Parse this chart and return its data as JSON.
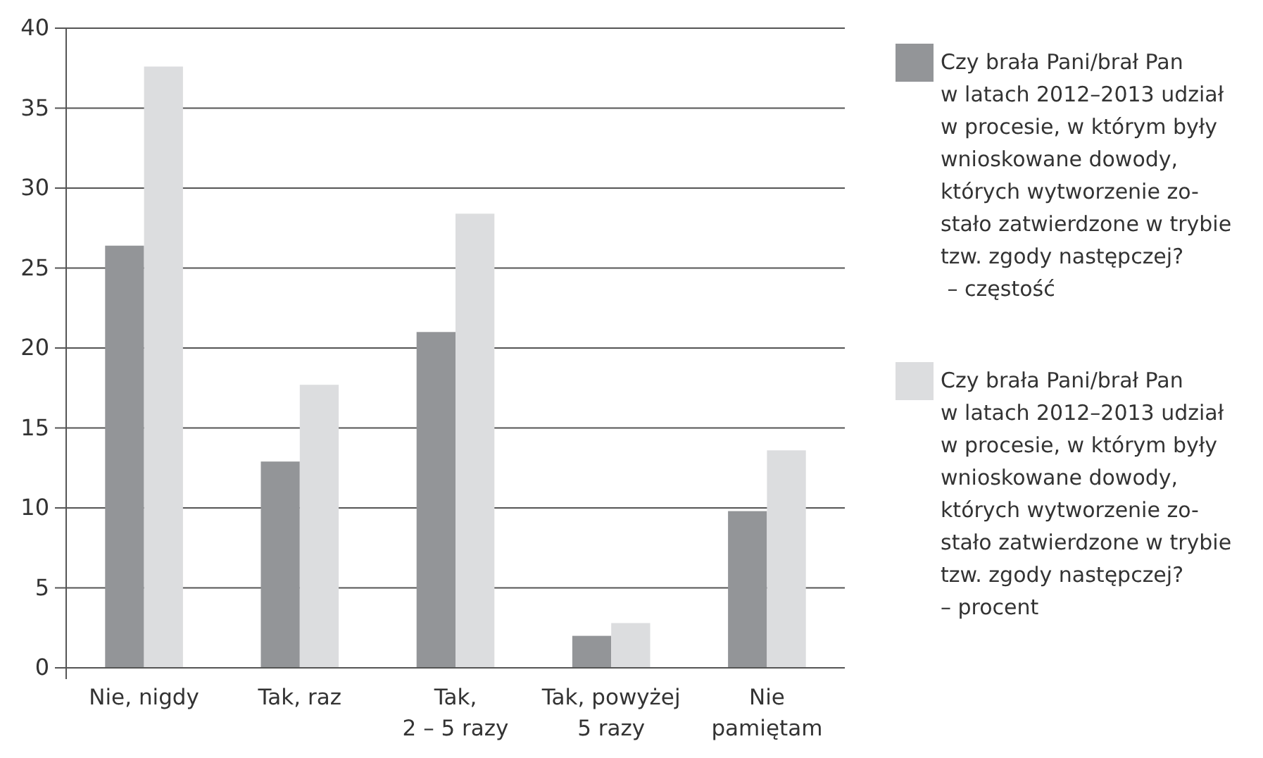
{
  "chart_data": {
    "type": "bar",
    "categories": [
      "Nie, nigdy",
      "Tak, raz",
      "Tak,\n2 – 5 razy",
      "Tak, powyżej\n5 razy",
      "Nie\npamiętam"
    ],
    "series": [
      {
        "name": "Czy brała Pani/brał Pan\nw latach 2012–2013 udział\nw procesie, w którym były\nwnioskowane dowody,\nktórych wytworzenie zo-\nstało zatwierdzone w trybie\ntzw. zgody następczej?\n – częstość",
        "color": "#939598",
        "values": [
          26.4,
          12.9,
          21.0,
          2.0,
          9.8
        ]
      },
      {
        "name": "Czy brała Pani/brał Pan\nw latach 2012–2013 udział\nw procesie, w którym były\nwnioskowane dowody,\nktórych wytworzenie zo-\nstało zatwierdzone w trybie\ntzw. zgody następczej?\n– procent",
        "color": "#dcdddf",
        "values": [
          37.6,
          17.7,
          28.4,
          2.8,
          13.6
        ]
      }
    ],
    "ylim": [
      0,
      40
    ],
    "yticks": [
      0,
      5,
      10,
      15,
      20,
      25,
      30,
      35,
      40
    ],
    "grid": "y",
    "legend": "right"
  }
}
